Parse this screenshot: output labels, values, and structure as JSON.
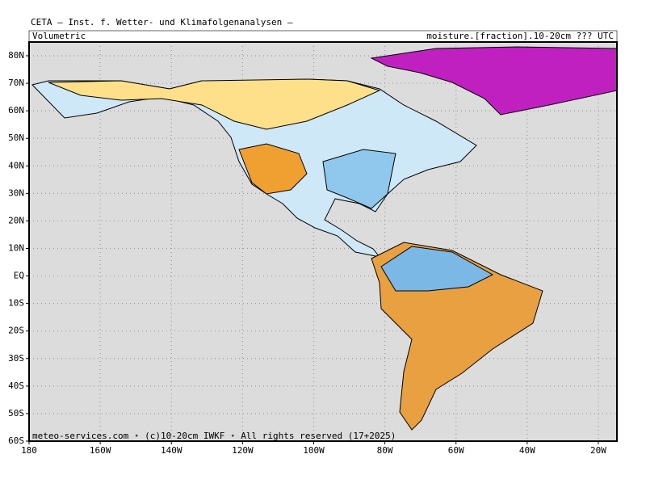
{
  "header": {
    "title": "CETA — Inst. f. Wetter- und Klimafolgenanalysen —",
    "left_label": "Volumetric",
    "right_label": "moisture.[fraction].10-20cm ??? UTC"
  },
  "axes": {
    "lat": [
      "80N",
      "70N",
      "60N",
      "50N",
      "40N",
      "30N",
      "20N",
      "10N",
      "EQ",
      "10S",
      "20S",
      "30S",
      "40S",
      "50S",
      "60S"
    ],
    "lon": [
      "180",
      "160W",
      "140W",
      "120W",
      "100W",
      "80W",
      "60W",
      "40W",
      "20W"
    ]
  },
  "footer": "meteo-services.com ⋆ (c)10-20cm IWKF ⋆ All rights reserved (17+2025)"
}
